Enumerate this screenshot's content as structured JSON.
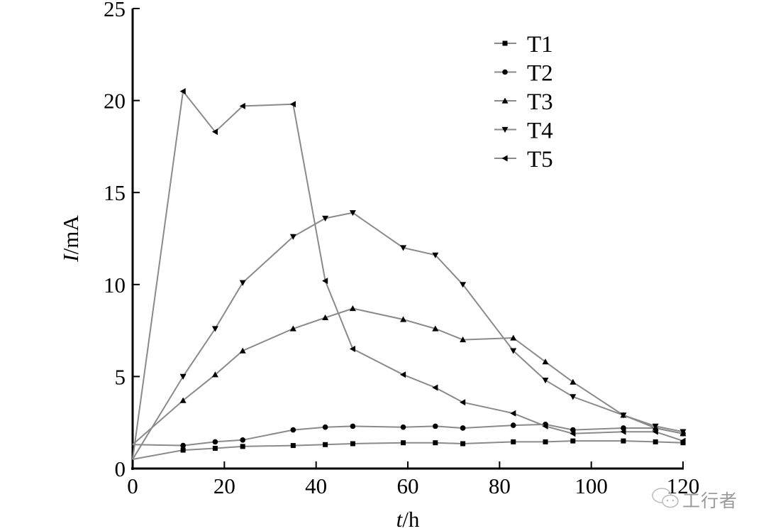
{
  "chart_data": {
    "type": "line",
    "title": "",
    "xlabel_italic": "t",
    "xlabel_unit": "/h",
    "ylabel_italic": "I",
    "ylabel_unit": "/mA",
    "xlim": [
      0,
      120
    ],
    "ylim": [
      0,
      25
    ],
    "xticks": [
      "0",
      "20",
      "40",
      "60",
      "80",
      "100",
      "120"
    ],
    "yticks": [
      "0",
      "5",
      "10",
      "15",
      "20",
      "25"
    ],
    "grid": false,
    "legend_position": "top-right",
    "line_color": "#8a8a8a",
    "marker_color": "#000000",
    "x": [
      0,
      11,
      18,
      24,
      35,
      42,
      48,
      59,
      66,
      72,
      83,
      90,
      96,
      107,
      114,
      120
    ],
    "series": [
      {
        "name": "T1",
        "marker": "square",
        "values": [
          0.5,
          1.0,
          1.1,
          1.2,
          1.25,
          1.3,
          1.35,
          1.4,
          1.4,
          1.35,
          1.45,
          1.45,
          1.5,
          1.5,
          1.45,
          1.4
        ]
      },
      {
        "name": "T2",
        "marker": "circle",
        "values": [
          1.3,
          1.25,
          1.45,
          1.55,
          2.1,
          2.25,
          2.3,
          2.25,
          2.3,
          2.2,
          2.35,
          2.4,
          2.1,
          2.2,
          2.2,
          1.9
        ]
      },
      {
        "name": "T3",
        "marker": "triangle-up",
        "values": [
          1.3,
          3.7,
          5.1,
          6.4,
          7.6,
          8.2,
          8.7,
          8.1,
          7.6,
          7.0,
          7.1,
          5.8,
          4.7,
          2.9,
          2.2,
          1.9
        ]
      },
      {
        "name": "T4",
        "marker": "triangle-down",
        "values": [
          0.5,
          5.0,
          7.6,
          10.1,
          12.6,
          13.6,
          13.9,
          12.0,
          11.6,
          10.0,
          6.4,
          4.8,
          3.9,
          2.9,
          2.3,
          2.0
        ]
      },
      {
        "name": "T5",
        "marker": "triangle-left",
        "values": [
          0.5,
          20.5,
          18.3,
          19.7,
          19.8,
          10.2,
          6.5,
          5.1,
          4.4,
          3.6,
          3.0,
          2.3,
          1.9,
          2.0,
          2.0,
          1.5
        ]
      }
    ]
  },
  "watermark": {
    "text": "工行者",
    "icon": "wechat-icon"
  }
}
